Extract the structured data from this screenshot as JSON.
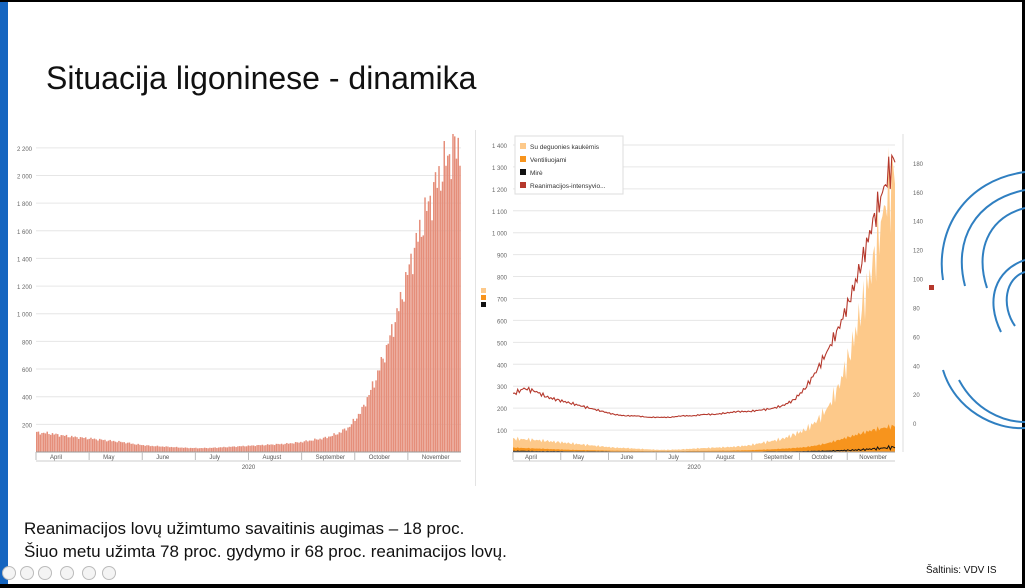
{
  "slide": {
    "title": "Situacija ligoninese - dinamika",
    "footer_line_1": "Reanimacijos lovų užimtumo savaitinis augimas – 18 proc.",
    "footer_line_2": "Šiuo metu užimta 78 proc. gydymo ir 68 proc. reanimacijos lovų.",
    "source": "Šaltinis: VDV IS"
  },
  "colors": {
    "left_bars": "#e58e7a",
    "oxygen": "#fdc98a",
    "ventilated": "#f7941d",
    "deaths": "#111111",
    "icu": "#b5382c",
    "accent": "#1565c0"
  },
  "chart_data": [
    {
      "type": "bar",
      "title": "",
      "xlabel": "2020",
      "ylabel": "",
      "ylim": [
        0,
        2300
      ],
      "yticks": [
        200,
        400,
        600,
        800,
        1000,
        1200,
        1400,
        1600,
        1800,
        2000,
        2200
      ],
      "ytick_labels": [
        "200",
        "400",
        "600",
        "800",
        "1 000",
        "1 200",
        "1 400",
        "1 600",
        "1 800",
        "2 000",
        "2 200"
      ],
      "month_labels": [
        "April",
        "May",
        "June",
        "July",
        "August",
        "September",
        "October",
        "November"
      ],
      "grid": true,
      "x_start": "2020-04-01",
      "x_end": "2020-12-01",
      "weekly_values": [
        140,
        135,
        120,
        108,
        100,
        90,
        80,
        70,
        55,
        45,
        40,
        35,
        30,
        28,
        30,
        35,
        40,
        45,
        50,
        55,
        60,
        70,
        85,
        100,
        130,
        180,
        300,
        500,
        750,
        1050,
        1400,
        1700,
        1950,
        2150,
        2230
      ]
    },
    {
      "type": "area",
      "title": "",
      "xlabel": "2020",
      "ylim_left": [
        0,
        1450
      ],
      "ylim_right": [
        -20,
        200
      ],
      "yticks_left": [
        100,
        200,
        300,
        400,
        500,
        600,
        700,
        800,
        900,
        1000,
        1100,
        1200,
        1300,
        1400
      ],
      "ytick_labels_left": [
        "100",
        "200",
        "300",
        "400",
        "500",
        "600",
        "700",
        "800",
        "900",
        "1 000",
        "1 100",
        "1 200",
        "1 300",
        "1 400"
      ],
      "yticks_right": [
        0,
        20,
        40,
        60,
        80,
        100,
        120,
        140,
        160,
        180
      ],
      "ytick_labels_right": [
        "0",
        "20",
        "40",
        "60",
        "80",
        "100",
        "120",
        "140",
        "160",
        "180"
      ],
      "month_labels": [
        "April",
        "May",
        "June",
        "July",
        "August",
        "September",
        "October",
        "November"
      ],
      "grid": true,
      "legend_position": "top-left",
      "x_start": "2020-04-01",
      "x_end": "2020-12-01",
      "series": [
        {
          "name": "Su deguonies kaukėmis",
          "axis": "left",
          "kind": "area",
          "weekly_values": [
            60,
            58,
            55,
            50,
            45,
            40,
            35,
            30,
            25,
            20,
            18,
            15,
            12,
            10,
            10,
            12,
            15,
            18,
            20,
            22,
            25,
            30,
            40,
            50,
            60,
            80,
            100,
            140,
            200,
            300,
            450,
            650,
            850,
            1100,
            1300
          ]
        },
        {
          "name": "Ventiliuojami",
          "axis": "left",
          "kind": "area",
          "weekly_values": [
            20,
            18,
            16,
            14,
            12,
            10,
            9,
            8,
            7,
            6,
            5,
            5,
            4,
            4,
            4,
            4,
            5,
            5,
            6,
            6,
            7,
            8,
            10,
            12,
            15,
            18,
            22,
            30,
            40,
            55,
            70,
            85,
            100,
            110,
            120
          ]
        },
        {
          "name": "Mirė",
          "axis": "left",
          "kind": "line",
          "weekly_values": [
            3,
            3,
            2,
            2,
            2,
            1,
            1,
            1,
            1,
            0,
            0,
            0,
            0,
            0,
            0,
            0,
            0,
            0,
            0,
            0,
            0,
            0,
            0,
            1,
            1,
            1,
            2,
            3,
            4,
            6,
            8,
            10,
            14,
            18,
            22
          ]
        },
        {
          "name": "Reanimacijos-intensyvio...",
          "axis": "right",
          "kind": "line",
          "weekly_values": [
            20,
            24,
            22,
            18,
            16,
            14,
            12,
            10,
            8,
            6,
            5,
            5,
            4,
            4,
            4,
            5,
            5,
            6,
            6,
            7,
            8,
            8,
            9,
            10,
            12,
            16,
            24,
            36,
            50,
            66,
            86,
            110,
            138,
            162,
            185
          ]
        }
      ]
    }
  ]
}
